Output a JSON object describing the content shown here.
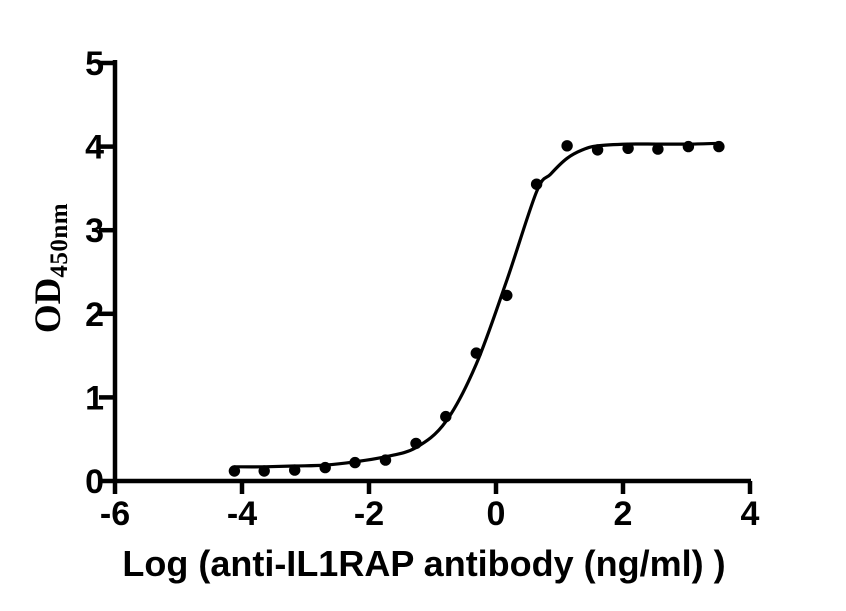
{
  "figure": {
    "background_color": "#ffffff",
    "foreground_color": "#000000"
  },
  "chart_data": {
    "type": "scatter",
    "subtype": "sigmoidal-dose-response-curve",
    "title": "",
    "xlabel": "Log（anti-IL1RAP antibody（ng/ml））",
    "xlabel_display": "Log (anti-IL1RAP antibody (ng/ml) )",
    "ylabel": "OD450nm",
    "ylabel_main": "OD",
    "ylabel_sub": "450nm",
    "xlim": [
      -6,
      4
    ],
    "ylim": [
      0,
      5
    ],
    "x_ticks": [
      -6,
      -4,
      -2,
      0,
      2,
      4
    ],
    "y_ticks": [
      0,
      1,
      2,
      3,
      4,
      5
    ],
    "grid": false,
    "legend": "none",
    "axis_color": "#000000",
    "marker_color": "#000000",
    "curve_color": "#000000",
    "points": {
      "x": [
        -4.12,
        -3.65,
        -3.17,
        -2.69,
        -2.22,
        -1.74,
        -1.26,
        -0.79,
        -0.31,
        0.17,
        0.64,
        1.12,
        1.6,
        2.08,
        2.55,
        3.03,
        3.51
      ],
      "y": [
        0.12,
        0.12,
        0.13,
        0.16,
        0.22,
        0.25,
        0.45,
        0.77,
        1.53,
        2.22,
        3.55,
        4.01,
        3.96,
        3.98,
        3.97,
        4.0,
        4.0
      ]
    },
    "fit_curve": {
      "x": [
        -4.12,
        -3.65,
        -3.17,
        -2.69,
        -2.22,
        -1.74,
        -1.26,
        -0.79,
        -0.31,
        0.17,
        0.64,
        0.86,
        1.12,
        1.36,
        1.6,
        2.08,
        2.55,
        3.03,
        3.51
      ],
      "y": [
        0.17,
        0.17,
        0.18,
        0.19,
        0.23,
        0.29,
        0.4,
        0.71,
        1.4,
        2.4,
        3.46,
        3.67,
        3.86,
        3.96,
        4.01,
        4.03,
        4.03,
        4.03,
        4.04
      ]
    }
  }
}
